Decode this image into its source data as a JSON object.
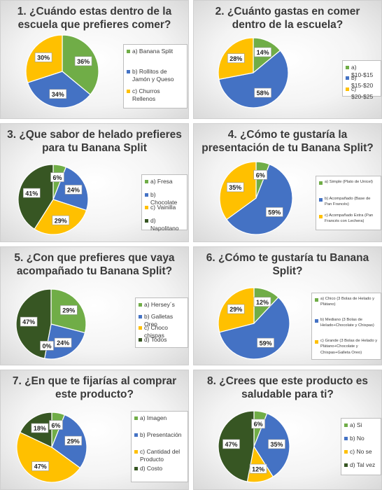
{
  "colors": {
    "green": "#70ad47",
    "blue": "#4472c4",
    "yellow": "#ffc000",
    "darkgreen": "#375623"
  },
  "charts": [
    {
      "title": "1. ¿Cuándo estas dentro de la escuela que prefieres comer?",
      "slices": [
        {
          "label": "a) Banana Split",
          "value": 36,
          "text": "36%",
          "color": "green"
        },
        {
          "label": "b) Rollitos de Jamón y Queso",
          "value": 34,
          "text": "34%",
          "color": "blue"
        },
        {
          "label": "c) Churros Rellenos",
          "value": 30,
          "text": "30%",
          "color": "yellow"
        }
      ]
    },
    {
      "title": "2. ¿Cuánto gastas en comer dentro de la escuela?",
      "slices": [
        {
          "label": "a) $10-$15",
          "value": 14,
          "text": "14%",
          "color": "green"
        },
        {
          "label": "b) $15-$20",
          "value": 58,
          "text": "58%",
          "color": "blue"
        },
        {
          "label": "c) $20-$25",
          "value": 28,
          "text": "28%",
          "color": "yellow"
        }
      ]
    },
    {
      "title": "3. ¿Que sabor de helado prefieres para tu Banana Split",
      "slices": [
        {
          "label": "a) Fresa",
          "value": 6,
          "text": "6%",
          "color": "green"
        },
        {
          "label": "b) Chocolate",
          "value": 24,
          "text": "24%",
          "color": "blue"
        },
        {
          "label": "c) Vainilla",
          "value": 29,
          "text": "29%",
          "color": "yellow"
        },
        {
          "label": "d) Napolitano",
          "value": 41,
          "text": "41%",
          "color": "darkgreen"
        }
      ]
    },
    {
      "title": "4. ¿Cómo te gustaría la presentación de tu Banana Split?",
      "slices": [
        {
          "label": "a) Simple (Plato de Unicel)",
          "value": 6,
          "text": "6%",
          "color": "green"
        },
        {
          "label": "b) Acompañado (Base de Pan Francés)",
          "value": 59,
          "text": "59%",
          "color": "blue"
        },
        {
          "label": "c) Acompañado Extra (Pan Francés con Lechera)",
          "value": 35,
          "text": "35%",
          "color": "yellow"
        }
      ]
    },
    {
      "title": "5. ¿Con que prefieres que vaya acompañado tu Banana Split?",
      "slices": [
        {
          "label": "a) Hersey´s",
          "value": 29,
          "text": "29%",
          "color": "green"
        },
        {
          "label": "b) Galletas Oreo",
          "value": 24,
          "text": "24%",
          "color": "blue"
        },
        {
          "label": "c) Choco chispas",
          "value": 0,
          "text": "0%",
          "color": "yellow"
        },
        {
          "label": "d) Todos",
          "value": 47,
          "text": "47%",
          "color": "darkgreen"
        }
      ]
    },
    {
      "title": "6. ¿Cómo te gustaría tu Banana Split?",
      "slices": [
        {
          "label": "a) Chico (3 Bolas de Helado y Plátano)",
          "value": 12,
          "text": "12%",
          "color": "green"
        },
        {
          "label": "b) Mediano (3 Bolas de Helado+Chocolate y Chispas)",
          "value": 59,
          "text": "59%",
          "color": "blue"
        },
        {
          "label": "c) Grande (3 Bolas de Helado y Plátano+Chocolate y Chispas+Galleta Oreo)",
          "value": 29,
          "text": "29%",
          "color": "yellow"
        }
      ]
    },
    {
      "title": "7. ¿En que te fijarías al comprar este producto?",
      "slices": [
        {
          "label": "a) Imagen",
          "value": 6,
          "text": "6%",
          "color": "green"
        },
        {
          "label": "b) Presentación",
          "value": 29,
          "text": "29%",
          "color": "blue"
        },
        {
          "label": "c) Cantidad del Producto",
          "value": 47,
          "text": "47%",
          "color": "yellow"
        },
        {
          "label": "d) Costo",
          "value": 18,
          "text": "18%",
          "color": "darkgreen"
        }
      ]
    },
    {
      "title": "8. ¿Crees que este producto es saludable para ti?",
      "slices": [
        {
          "label": "a) Si",
          "value": 6,
          "text": "6%",
          "color": "green"
        },
        {
          "label": "b) No",
          "value": 35,
          "text": "35%",
          "color": "blue"
        },
        {
          "label": "c) No se",
          "value": 12,
          "text": "12%",
          "color": "yellow"
        },
        {
          "label": "d) Tal vez",
          "value": 47,
          "text": "47%",
          "color": "darkgreen"
        }
      ]
    }
  ],
  "chart_data": [
    {
      "type": "pie",
      "title": "1. ¿Cuándo estas dentro de la escuela que prefieres comer?",
      "categories": [
        "a) Banana Split",
        "b) Rollitos de Jamón y Queso",
        "c) Churros Rellenos"
      ],
      "values": [
        36,
        34,
        30
      ]
    },
    {
      "type": "pie",
      "title": "2. ¿Cuánto gastas en comer dentro de la escuela?",
      "categories": [
        "a) $10-$15",
        "b) $15-$20",
        "c) $20-$25"
      ],
      "values": [
        14,
        58,
        28
      ]
    },
    {
      "type": "pie",
      "title": "3. ¿Que sabor de helado prefieres para tu Banana Split",
      "categories": [
        "a) Fresa",
        "b) Chocolate",
        "c) Vainilla",
        "d) Napolitano"
      ],
      "values": [
        6,
        24,
        29,
        41
      ]
    },
    {
      "type": "pie",
      "title": "4. ¿Cómo te gustaría la presentación de tu Banana Split?",
      "categories": [
        "a) Simple (Plato de Unicel)",
        "b) Acompañado (Base de Pan Francés)",
        "c) Acompañado Extra (Pan Francés con Lechera)"
      ],
      "values": [
        6,
        59,
        35
      ]
    },
    {
      "type": "pie",
      "title": "5. ¿Con que prefieres que vaya acompañado tu Banana Split?",
      "categories": [
        "a) Hersey´s",
        "b) Galletas Oreo",
        "c) Choco chispas",
        "d) Todos"
      ],
      "values": [
        29,
        24,
        0,
        47
      ]
    },
    {
      "type": "pie",
      "title": "6. ¿Cómo te gustaría tu Banana Split?",
      "categories": [
        "a) Chico (3 Bolas de Helado y Plátano)",
        "b) Mediano (3 Bolas de Helado+Chocolate y Chispas)",
        "c) Grande (3 Bolas de Helado y Plátano+Chocolate y Chispas+Galleta Oreo)"
      ],
      "values": [
        12,
        59,
        29
      ]
    },
    {
      "type": "pie",
      "title": "7. ¿En que te fijarías al comprar este producto?",
      "categories": [
        "a) Imagen",
        "b) Presentación",
        "c) Cantidad del Producto",
        "d) Costo"
      ],
      "values": [
        6,
        29,
        47,
        18
      ]
    },
    {
      "type": "pie",
      "title": "8. ¿Crees que este producto es saludable para ti?",
      "categories": [
        "a) Si",
        "b) No",
        "c) No se",
        "d) Tal vez"
      ],
      "values": [
        6,
        35,
        12,
        47
      ]
    }
  ]
}
